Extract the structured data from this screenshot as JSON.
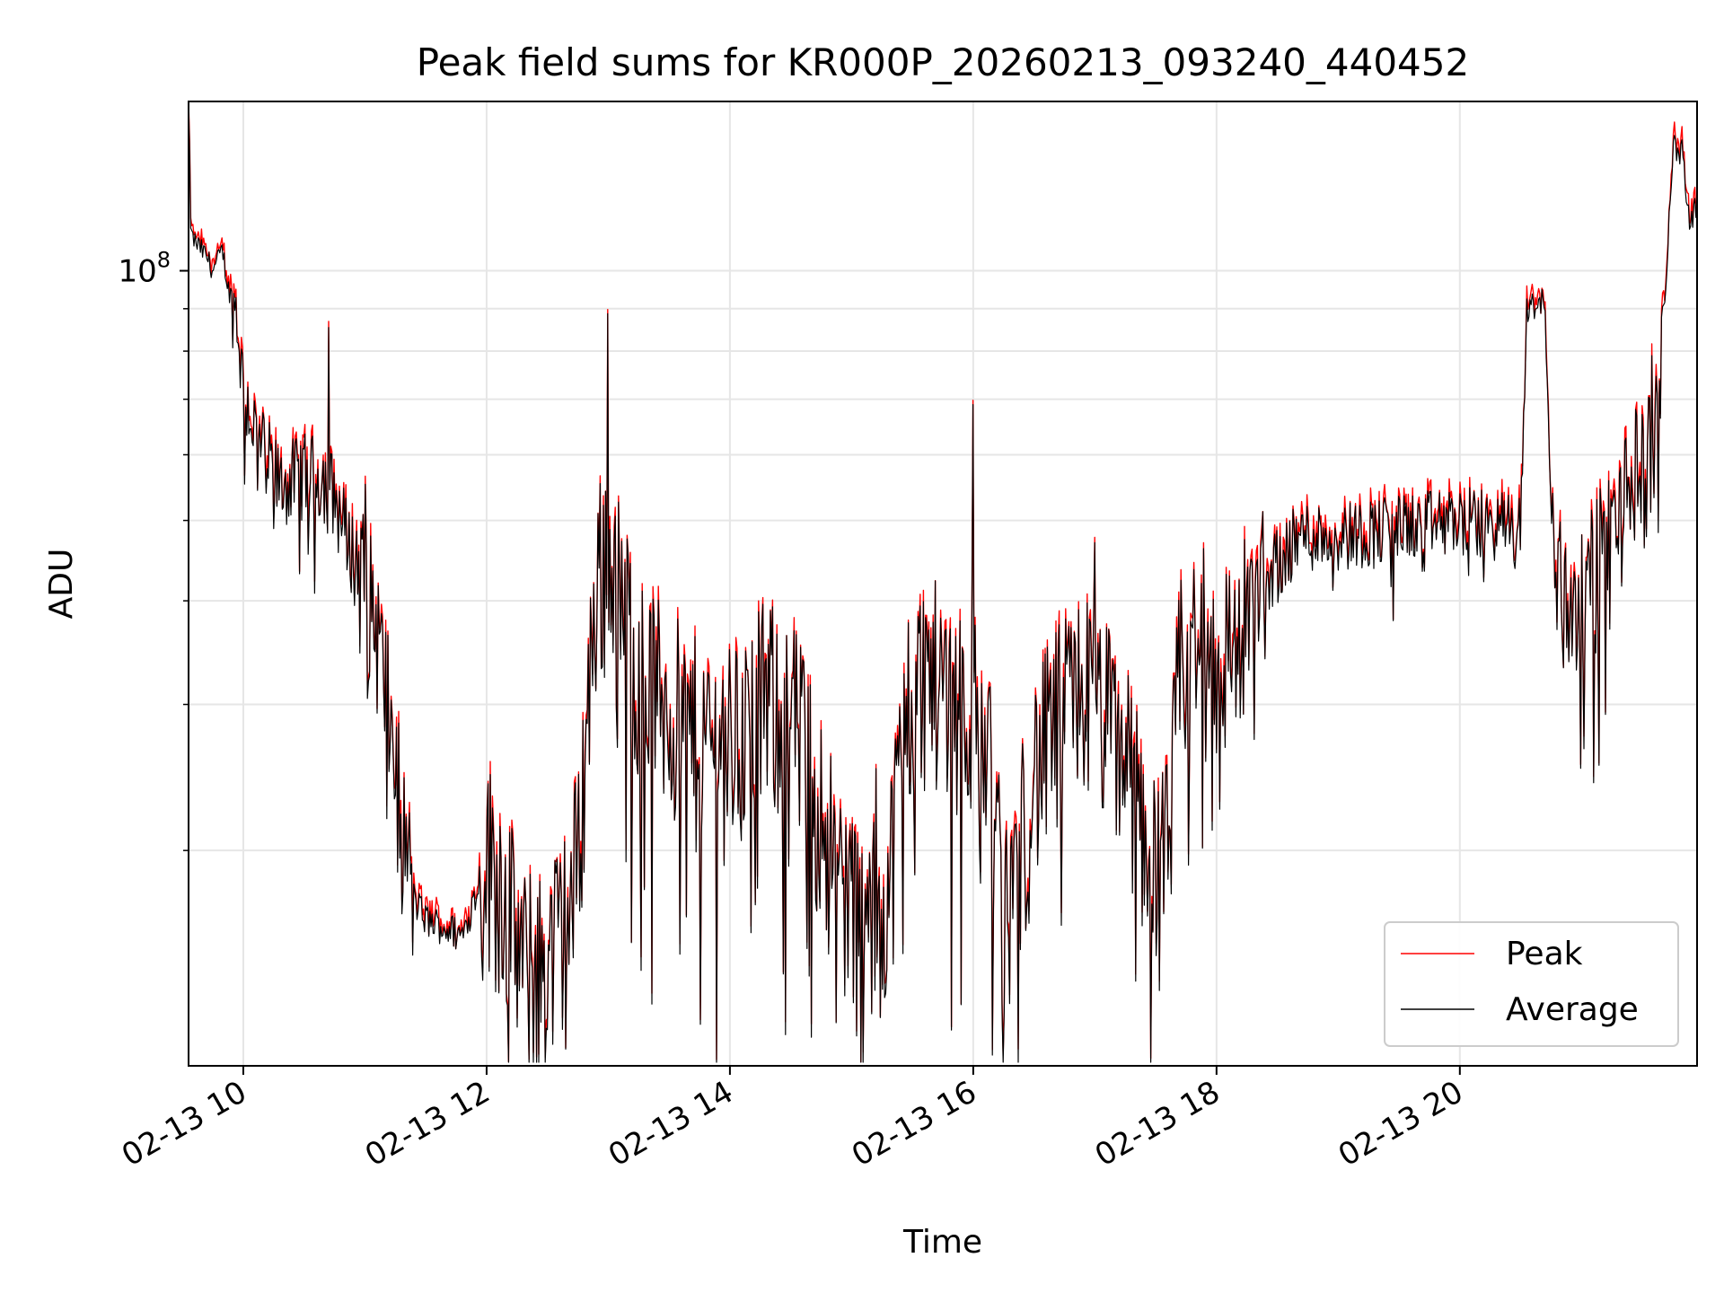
{
  "chart_data": {
    "type": "line",
    "title": "Peak field sums for KR000P_20260213_093240_440452",
    "xlabel": "Time",
    "ylabel": "ADU",
    "yscale": "log",
    "xlim_hours": [
      9.55,
      21.95
    ],
    "ylim": [
      11000000,
      160000000
    ],
    "x_ticks": [
      {
        "value": 10,
        "label": "02-13 10"
      },
      {
        "value": 12,
        "label": "02-13 12"
      },
      {
        "value": 14,
        "label": "02-13 14"
      },
      {
        "value": 16,
        "label": "02-13 16"
      },
      {
        "value": 18,
        "label": "02-13 18"
      },
      {
        "value": 20,
        "label": "02-13 20"
      }
    ],
    "y_major_ticks": [
      {
        "value": 100000000,
        "label_base": "10",
        "label_exp": "8"
      }
    ],
    "y_minor_ticks": [
      20000000,
      30000000,
      40000000,
      50000000,
      60000000,
      70000000,
      80000000,
      90000000
    ],
    "grid": true,
    "legend_position": "lower-right",
    "x_unit": "hour of day 2026-02-13",
    "series": [
      {
        "name": "Peak",
        "color": "#ff0000",
        "anchors": [
          [
            9.55,
            160000000
          ],
          [
            9.57,
            110000000
          ],
          [
            9.7,
            104000000
          ],
          [
            9.75,
            100000000
          ],
          [
            9.83,
            106000000
          ],
          [
            9.87,
            96000000
          ],
          [
            9.95,
            88000000
          ],
          [
            10.0,
            72000000
          ],
          [
            10.1,
            64000000
          ],
          [
            10.3,
            55000000
          ],
          [
            10.5,
            57000000
          ],
          [
            10.7,
            56000000
          ],
          [
            10.85,
            48000000
          ],
          [
            11.0,
            42000000
          ],
          [
            11.1,
            37000000
          ],
          [
            11.2,
            29000000
          ],
          [
            11.3,
            22000000
          ],
          [
            11.4,
            17500000
          ],
          [
            11.5,
            16500000
          ],
          [
            11.8,
            15800000
          ],
          [
            11.9,
            17500000
          ],
          [
            12.0,
            20000000
          ],
          [
            12.15,
            18000000
          ],
          [
            12.3,
            14500000
          ],
          [
            12.5,
            14800000
          ],
          [
            12.7,
            17000000
          ],
          [
            12.8,
            25000000
          ],
          [
            12.9,
            42000000
          ],
          [
            13.0,
            47000000
          ],
          [
            13.1,
            40000000
          ],
          [
            13.3,
            33000000
          ],
          [
            13.5,
            30000000
          ],
          [
            13.7,
            28000000
          ],
          [
            13.9,
            27000000
          ],
          [
            14.1,
            28000000
          ],
          [
            14.3,
            31000000
          ],
          [
            14.5,
            30000000
          ],
          [
            14.7,
            24000000
          ],
          [
            14.9,
            19000000
          ],
          [
            15.1,
            16000000
          ],
          [
            15.3,
            18000000
          ],
          [
            15.45,
            30000000
          ],
          [
            15.6,
            33000000
          ],
          [
            15.8,
            32000000
          ],
          [
            16.0,
            30000000
          ],
          [
            16.15,
            25000000
          ],
          [
            16.25,
            16000000
          ],
          [
            16.35,
            19000000
          ],
          [
            16.5,
            25000000
          ],
          [
            16.7,
            29000000
          ],
          [
            16.9,
            32000000
          ],
          [
            17.1,
            29000000
          ],
          [
            17.3,
            25000000
          ],
          [
            17.5,
            19000000
          ],
          [
            17.6,
            20000000
          ],
          [
            17.7,
            33000000
          ],
          [
            17.9,
            36000000
          ],
          [
            18.1,
            35000000
          ],
          [
            18.3,
            38000000
          ],
          [
            18.5,
            45000000
          ],
          [
            18.7,
            48000000
          ],
          [
            19.0,
            48000000
          ],
          [
            19.5,
            49000000
          ],
          [
            20.0,
            50000000
          ],
          [
            20.5,
            49000000
          ],
          [
            20.55,
            90000000
          ],
          [
            20.7,
            92000000
          ],
          [
            20.75,
            50000000
          ],
          [
            20.85,
            40000000
          ],
          [
            21.0,
            40000000
          ],
          [
            21.2,
            48000000
          ],
          [
            21.45,
            56000000
          ],
          [
            21.55,
            60000000
          ],
          [
            21.7,
            100000000
          ],
          [
            21.75,
            140000000
          ],
          [
            21.83,
            140000000
          ],
          [
            21.88,
            115000000
          ],
          [
            21.95,
            120000000
          ]
        ]
      },
      {
        "name": "Average",
        "color": "#000000"
      }
    ]
  }
}
